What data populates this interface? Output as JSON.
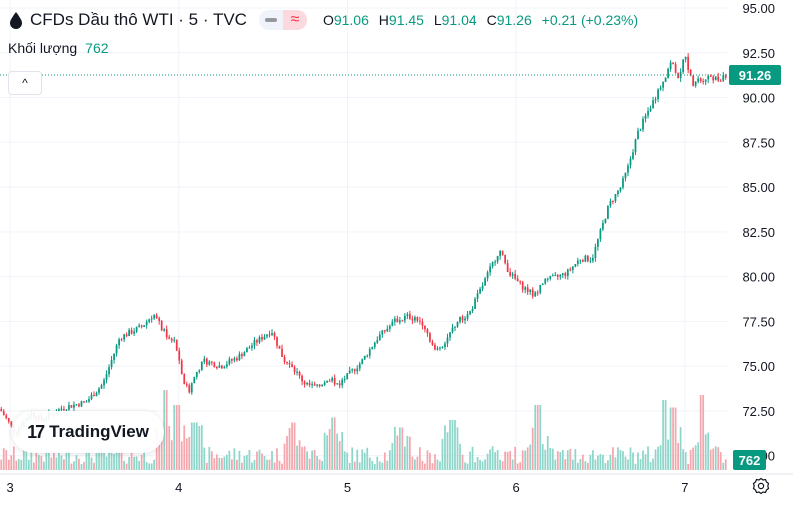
{
  "header": {
    "title": "CFDs Dầu thô WTI · 5 · TVC",
    "ohlc": [
      {
        "key": "O",
        "value": "91.06"
      },
      {
        "key": "H",
        "value": "91.45"
      },
      {
        "key": "L",
        "value": "91.04"
      },
      {
        "key": "C",
        "value": "91.26"
      },
      {
        "key": "",
        "value": "+0.21 (+0.23%)"
      }
    ]
  },
  "volume_legend": {
    "label": "Khối lượng",
    "value": "762"
  },
  "badges": {
    "price": "91.26",
    "volume": "762"
  },
  "logo": {
    "text": "TradingView"
  },
  "colors": {
    "up": "#089981",
    "down": "#f23645",
    "vol_up": "#8fd6ca",
    "vol_down": "#f5a6ad"
  },
  "chart_data": {
    "type": "line",
    "subtype": "candlestick",
    "symbol": "CFDs Dầu thô WTI",
    "interval": "5",
    "source": "TVC",
    "x_ticks": [
      "3",
      "4",
      "5",
      "6",
      "7"
    ],
    "y_ticks": [
      70.0,
      72.5,
      75.0,
      77.5,
      80.0,
      82.5,
      85.0,
      87.5,
      90.0,
      92.5,
      95.0
    ],
    "y_tick_labels": [
      "70.00",
      "72.50",
      "75.00",
      "77.50",
      "80.00",
      "82.50",
      "85.00",
      "87.50",
      "90.00",
      "92.50",
      "95.00"
    ],
    "ylim": [
      69.2,
      95.0
    ],
    "xlim": [
      2.94,
      7.25
    ],
    "last_price": 91.26,
    "last_volume": 762,
    "price_path": {
      "x": [
        2.94,
        3.03,
        3.12,
        3.18,
        3.32,
        3.45,
        3.55,
        3.65,
        3.78,
        3.85,
        3.92,
        3.98,
        4.02,
        4.06,
        4.1,
        4.15,
        4.25,
        4.35,
        4.45,
        4.55,
        4.62,
        4.7,
        4.75,
        4.82,
        4.88,
        4.95,
        5.08,
        5.18,
        5.28,
        5.36,
        5.45,
        5.52,
        5.58,
        5.65,
        5.72,
        5.8,
        5.9,
        5.96,
        6.03,
        6.1,
        6.18,
        6.25,
        6.3,
        6.38,
        6.45,
        6.55,
        6.62,
        6.66,
        6.72,
        6.78,
        6.85,
        6.92,
        6.97,
        7.0,
        7.03,
        7.05,
        7.1,
        7.15,
        7.2,
        7.23
      ],
      "y": [
        72.6,
        71.3,
        72.4,
        72.0,
        72.7,
        73.0,
        74.0,
        76.6,
        77.2,
        77.9,
        76.8,
        76.3,
        74.3,
        73.6,
        74.6,
        75.3,
        75.0,
        75.5,
        76.3,
        77.0,
        75.4,
        74.6,
        74.0,
        73.8,
        74.3,
        74.0,
        75.2,
        76.6,
        77.5,
        77.8,
        77.4,
        75.8,
        76.4,
        77.5,
        77.9,
        79.5,
        81.5,
        80.2,
        79.5,
        79.0,
        79.8,
        80.0,
        80.2,
        81.0,
        81.0,
        84.0,
        85.0,
        86.0,
        88.0,
        89.2,
        90.5,
        92.0,
        91.0,
        92.6,
        91.2,
        90.8,
        91.0,
        91.2,
        91.0,
        91.26
      ]
    },
    "volume_spikes": [
      {
        "x": 3.92,
        "volume": 3.2
      },
      {
        "x": 3.985,
        "volume": 2.6
      },
      {
        "x": 4.09,
        "volume": 1.9
      },
      {
        "x": 4.68,
        "volume": 1.9
      },
      {
        "x": 4.92,
        "volume": 2.1
      },
      {
        "x": 5.32,
        "volume": 1.7
      },
      {
        "x": 5.62,
        "volume": 2.0
      },
      {
        "x": 6.13,
        "volume": 2.6
      },
      {
        "x": 6.88,
        "volume": 2.8
      },
      {
        "x": 6.93,
        "volume": 2.5
      },
      {
        "x": 7.1,
        "volume": 3.0
      }
    ]
  }
}
